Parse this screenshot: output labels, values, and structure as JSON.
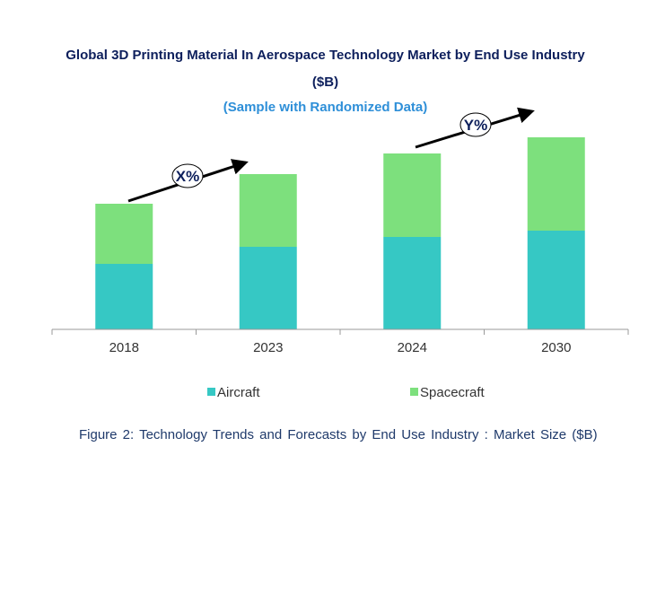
{
  "chart_data": {
    "type": "bar",
    "stacked": true,
    "title": "Global 3D Printing Material In Aerospace Technology Market by End Use Industry ($B)",
    "title_line1": "Global 3D Printing Material In Aerospace Technology Market by End Use Industry",
    "title_line2": "($B)",
    "subtitle": "(Sample with Randomized Data)",
    "categories": [
      "2018",
      "2023",
      "2024",
      "2030"
    ],
    "series": [
      {
        "name": "Aircraft",
        "color": "#36C8C4",
        "values": [
          7.3,
          9.2,
          10.3,
          11.0
        ]
      },
      {
        "name": "Spacecraft",
        "color": "#7DE07D",
        "values": [
          6.7,
          8.1,
          9.3,
          10.4
        ]
      }
    ],
    "annotations": [
      {
        "label": "X%",
        "from": "2018",
        "to": "2023"
      },
      {
        "label": "Y%",
        "from": "2024",
        "to": "2030"
      }
    ],
    "yaxis_visible": false,
    "grid": false,
    "legend_position": "bottom",
    "caption": "Figure 2: Technology  Trends  and Forecasts by  End Use Industry   : Market Size ($B)"
  }
}
